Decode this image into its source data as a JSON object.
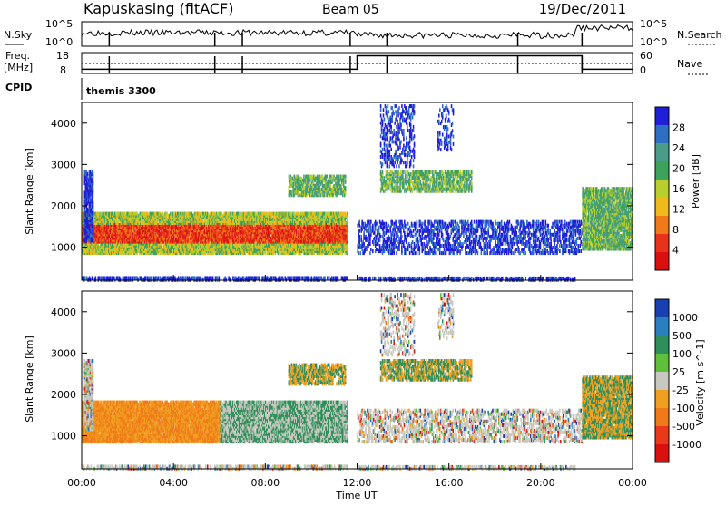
{
  "header": {
    "station": "Kapuskasing (fitACF)",
    "beam": "Beam 05",
    "date": "19/Dec/2011"
  },
  "noise_panel": {
    "left_label": "N.Sky",
    "left_ticks": [
      "10^5",
      "10^0"
    ],
    "right_ticks": [
      "10^5",
      "10^0"
    ],
    "right_label": "N.Search"
  },
  "freq_panel": {
    "left_label_1": "Freq.",
    "left_label_2": "[MHz]",
    "left_ticks": [
      "18",
      "8"
    ],
    "right_ticks": [
      "60",
      "0"
    ],
    "right_label": "Nave"
  },
  "cpid": {
    "label": "CPID",
    "value": "themis 3300"
  },
  "chart_data": [
    {
      "type": "heatmap",
      "ylabel": "Slant Range [km]",
      "yticks": [
        "4000",
        "3000",
        "2000",
        "1000"
      ],
      "colorbar_label": "Power [dB]",
      "colorbar_ticks": [
        "28",
        "24",
        "20",
        "16",
        "12",
        "8",
        "4"
      ],
      "colors": [
        "#1f1fd8",
        "#2e6fc4",
        "#4a9b8a",
        "#3da35a",
        "#b9cf2e",
        "#f0b91c",
        "#f07a1a",
        "#e8321a",
        "#d81010"
      ]
    },
    {
      "type": "heatmap",
      "ylabel": "Slant Range [km]",
      "yticks": [
        "4000",
        "3000",
        "2000",
        "1000"
      ],
      "colorbar_label": "Velocity [m s^-1]",
      "colorbar_ticks": [
        "1000",
        "500",
        "100",
        "25",
        "-25",
        "-100",
        "-500",
        "-1000"
      ],
      "colors": [
        "#1a3fb0",
        "#2a7fbf",
        "#2f8f5a",
        "#5fbf3a",
        "#c8c8c0",
        "#f0a020",
        "#f07a1a",
        "#e83a1a",
        "#d81010"
      ]
    }
  ],
  "time_axis": {
    "ticks": [
      "00:00",
      "04:00",
      "08:00",
      "12:00",
      "16:00",
      "20:00",
      "00:00"
    ],
    "label": "Time UT"
  }
}
